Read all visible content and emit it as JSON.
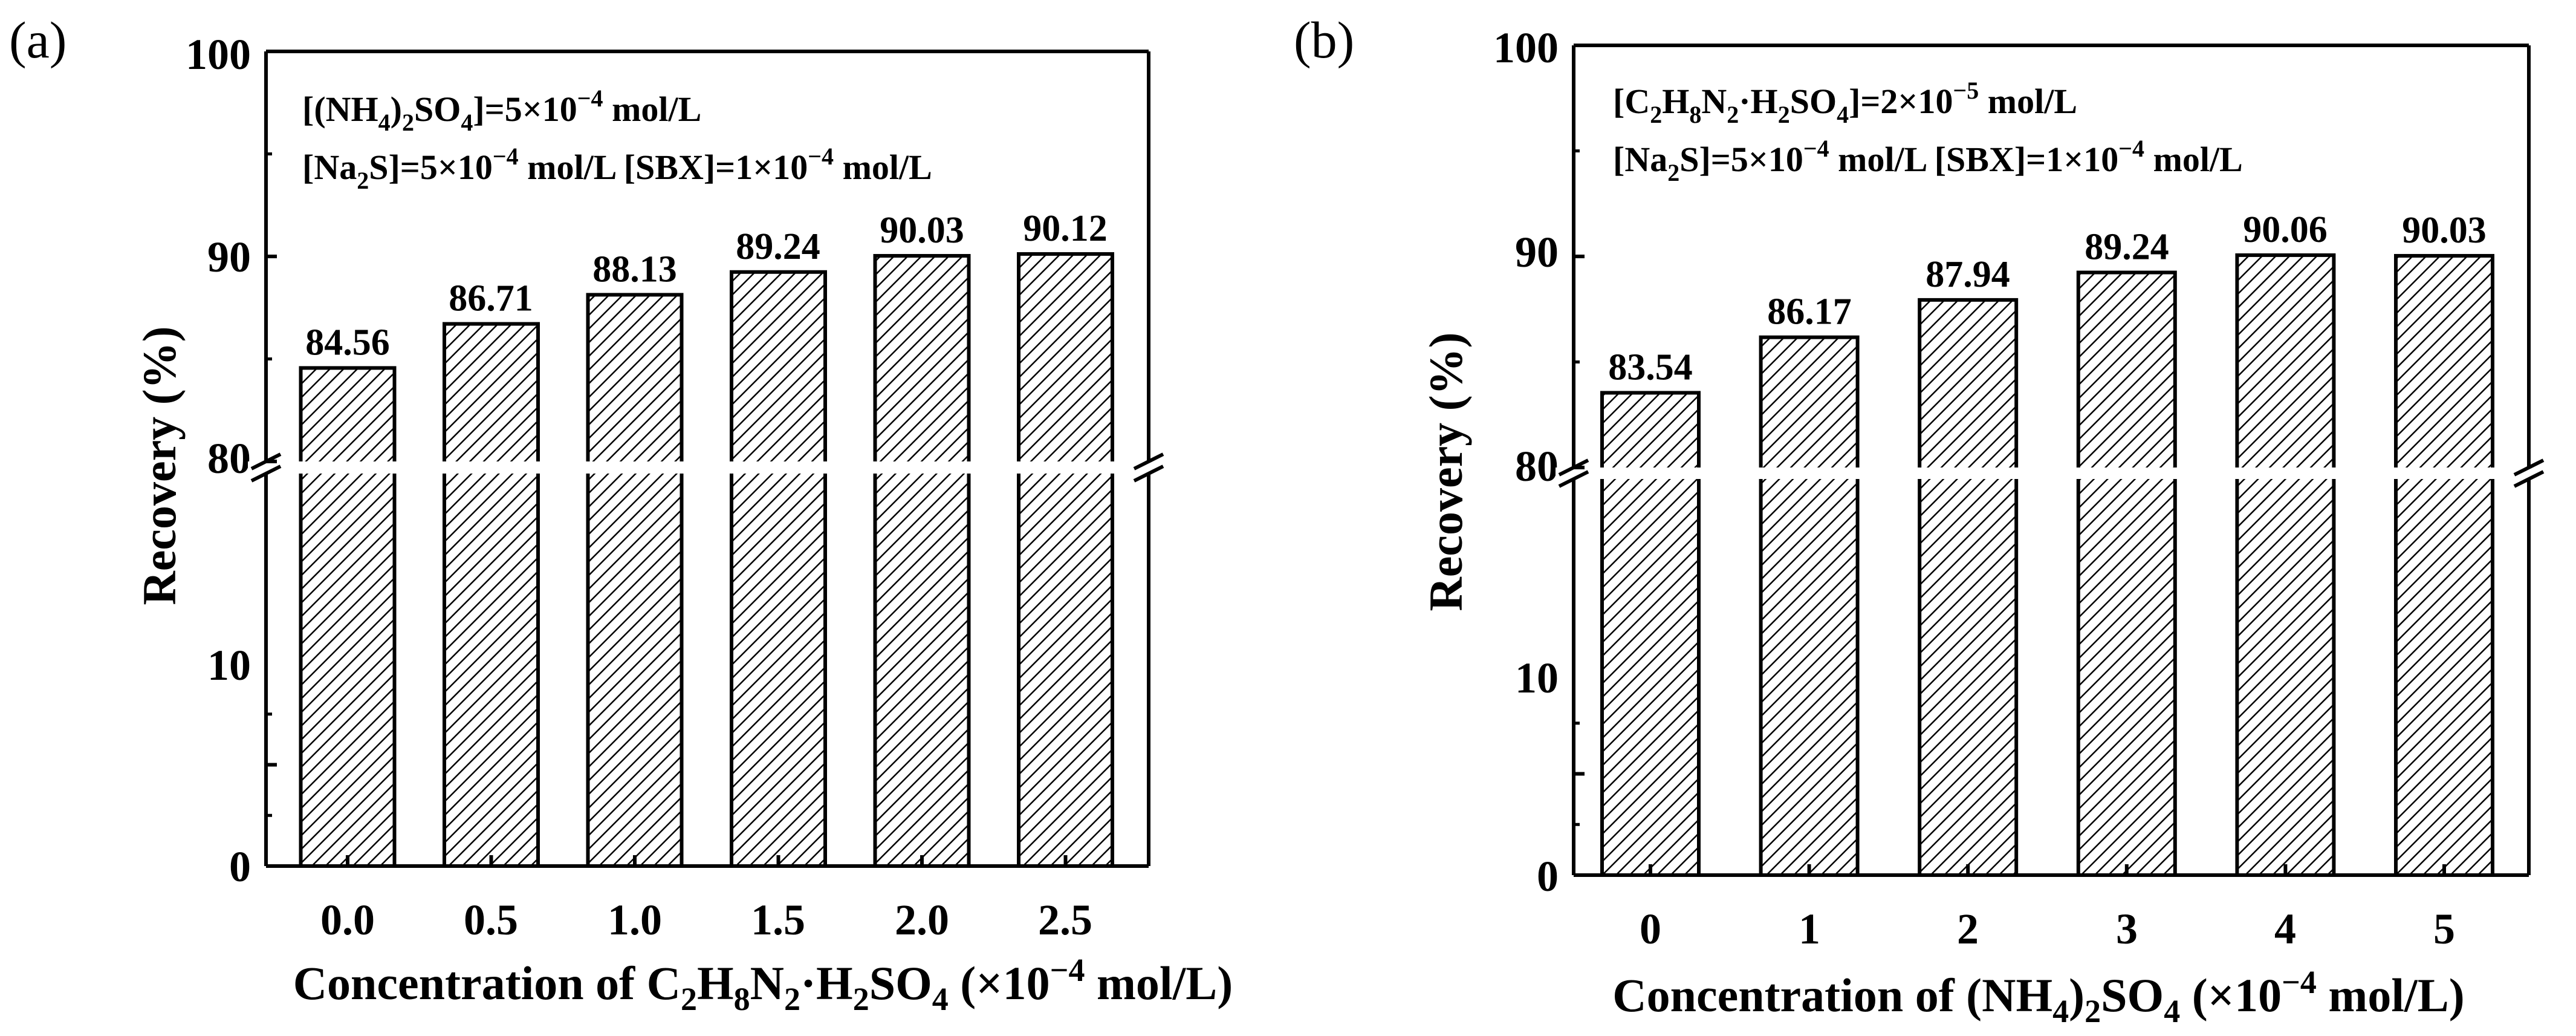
{
  "chart_data": [
    {
      "type": "bar",
      "panel": "(a)",
      "categories": [
        "0.0",
        "0.5",
        "1.0",
        "1.5",
        "2.0",
        "2.5"
      ],
      "values": [
        84.56,
        86.71,
        88.13,
        89.24,
        90.03,
        90.12
      ],
      "value_labels": [
        "84.56",
        "86.71",
        "88.13",
        "89.24",
        "90.03",
        "90.12"
      ],
      "ylabel": "Recovery (%)",
      "xlabel": {
        "pre": "Concentration of C",
        "s1": "2",
        "m1": "H",
        "s2": "8",
        "m2": "N",
        "s3": "2",
        "m3": "·H",
        "s4": "2",
        "m4": "SO",
        "s5": "4",
        "post": " (×10",
        "sup": "−4",
        "tail": " mol/L)"
      },
      "ylim_lower": [
        0,
        20
      ],
      "ylim_upper": [
        80,
        100
      ],
      "axis_break": "80 / 20",
      "yticks_lower": [
        "0",
        "10"
      ],
      "yticks_upper": [
        "80",
        "90",
        "100"
      ],
      "annotations": [
        {
          "a": "[(NH",
          "b": "4",
          "c": ")",
          "d": "2",
          "e": "SO",
          "f": "4",
          "g": "]=5×10",
          "h": "−4",
          "i": " mol/L"
        },
        {
          "a": "[Na",
          "b": "2",
          "c": "S]=5×10",
          "d": "−4",
          "e": " mol/L  [SBX]=1×10",
          "f": "−4",
          "g": " mol/L"
        }
      ]
    },
    {
      "type": "bar",
      "panel": "(b)",
      "categories": [
        "0",
        "1",
        "2",
        "3",
        "4",
        "5"
      ],
      "values": [
        83.54,
        86.17,
        87.94,
        89.24,
        90.06,
        90.03
      ],
      "value_labels": [
        "83.54",
        "86.17",
        "87.94",
        "89.24",
        "90.06",
        "90.03"
      ],
      "ylabel": "Recovery (%)",
      "xlabel": {
        "pre": "Concentration of (NH",
        "s1": "4",
        "m1": ")",
        "s2": "2",
        "m2": "SO",
        "s3": "4",
        "post": " (×10",
        "sup": "−4",
        "tail": " mol/L)"
      },
      "ylim_lower": [
        0,
        20
      ],
      "ylim_upper": [
        80,
        100
      ],
      "axis_break": "80 / 20",
      "yticks_lower": [
        "0",
        "10"
      ],
      "yticks_upper": [
        "80",
        "90",
        "100"
      ],
      "annotations": [
        {
          "a": "[C",
          "b": "2",
          "c": "H",
          "d": "8",
          "e": "N",
          "f": "2",
          "g": "·H",
          "h": "2",
          "i": "SO",
          "j": "4",
          "k": "]=2×10",
          "l": "−5",
          "m": " mol/L"
        },
        {
          "a": "[Na",
          "b": "2",
          "c": "S]=5×10",
          "d": "−4",
          "e": " mol/L  [SBX]=1×10",
          "f": "−4",
          "g": " mol/L"
        }
      ]
    }
  ]
}
